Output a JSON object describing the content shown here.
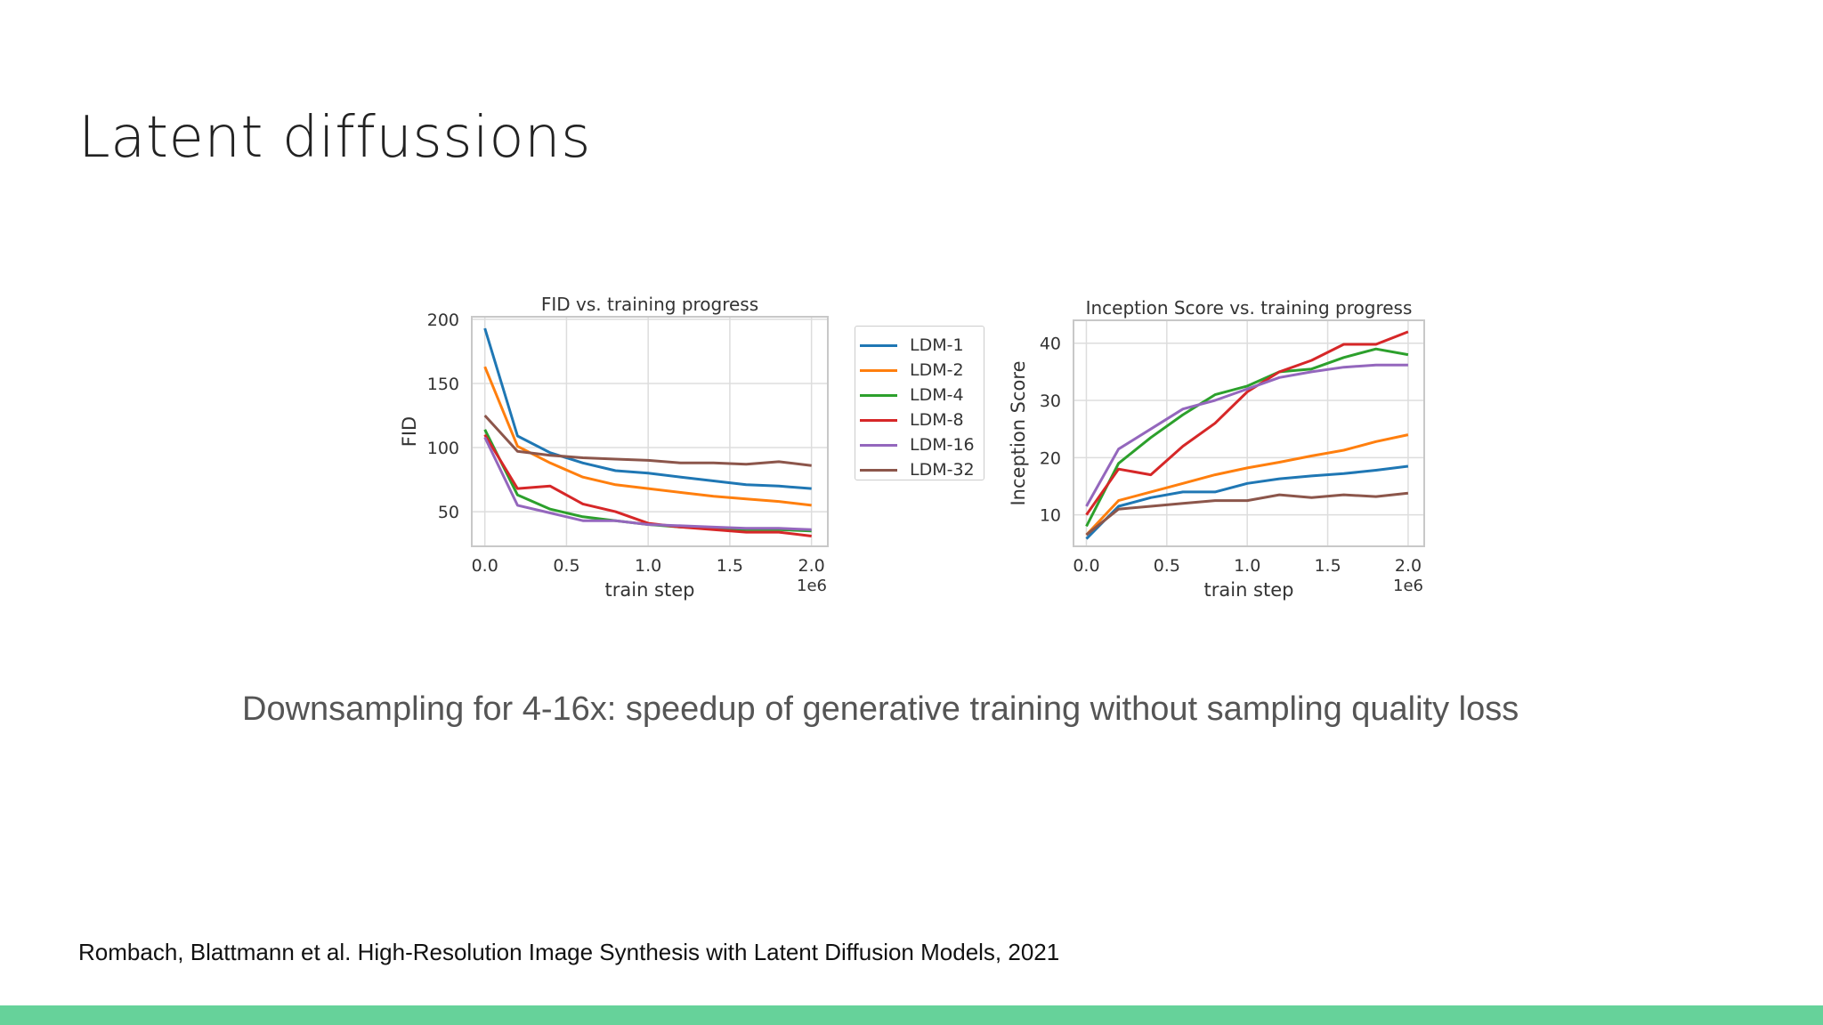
{
  "slide": {
    "title": "Latent diffussions",
    "caption": "Downsampling for 4-16x: speedup of generative training without sampling quality loss",
    "citation": "Rombach, Blattmann et al. High-Resolution Image Synthesis with Latent Diffusion Models, 2021",
    "accent_color": "#66d29a"
  },
  "legend": [
    {
      "name": "LDM-1",
      "color": "#1f77b4"
    },
    {
      "name": "LDM-2",
      "color": "#ff7f0e"
    },
    {
      "name": "LDM-4",
      "color": "#2ca02c"
    },
    {
      "name": "LDM-8",
      "color": "#d62728"
    },
    {
      "name": "LDM-16",
      "color": "#9467bd"
    },
    {
      "name": "LDM-32",
      "color": "#8c564b"
    }
  ],
  "chart_data": [
    {
      "type": "line",
      "title": "FID vs. training progress",
      "xlabel": "train step",
      "ylabel": "FID",
      "x_scale_label": "1e6",
      "xlim": [
        -0.08,
        2.1
      ],
      "ylim": [
        23,
        202
      ],
      "xticks": [
        0.0,
        0.5,
        1.0,
        1.5,
        2.0
      ],
      "xtick_labels": [
        "0.0",
        "0.5",
        "1.0",
        "1.5",
        "2.0"
      ],
      "yticks": [
        50,
        100,
        150,
        200
      ],
      "ytick_labels": [
        "50",
        "100",
        "150",
        "200"
      ],
      "grid": true,
      "legend_position": "right, outside",
      "x": [
        0.0,
        0.2,
        0.4,
        0.6,
        0.8,
        1.0,
        1.2,
        1.4,
        1.6,
        1.8,
        2.0
      ],
      "series": [
        {
          "name": "LDM-1",
          "color": "#1f77b4",
          "values": [
            193,
            109,
            96,
            88,
            82,
            80,
            77,
            74,
            71,
            70,
            68
          ]
        },
        {
          "name": "LDM-2",
          "color": "#ff7f0e",
          "values": [
            163,
            101,
            88,
            77,
            71,
            68,
            65,
            62,
            60,
            58,
            55
          ]
        },
        {
          "name": "LDM-4",
          "color": "#2ca02c",
          "values": [
            114,
            63,
            52,
            46,
            43,
            40,
            38,
            37,
            36,
            36,
            35
          ]
        },
        {
          "name": "LDM-8",
          "color": "#d62728",
          "values": [
            110,
            68,
            70,
            56,
            50,
            41,
            38,
            36,
            34,
            34,
            31
          ]
        },
        {
          "name": "LDM-16",
          "color": "#9467bd",
          "values": [
            108,
            55,
            49,
            43,
            43,
            40,
            39,
            38,
            37,
            37,
            36
          ]
        },
        {
          "name": "LDM-32",
          "color": "#8c564b",
          "values": [
            125,
            97,
            94,
            92,
            91,
            90,
            88,
            88,
            87,
            89,
            86
          ]
        }
      ]
    },
    {
      "type": "line",
      "title": "Inception Score vs. training progress",
      "xlabel": "train step",
      "ylabel": "Inception Score",
      "x_scale_label": "1e6",
      "xlim": [
        -0.08,
        2.1
      ],
      "ylim": [
        4.5,
        44
      ],
      "xticks": [
        0.0,
        0.5,
        1.0,
        1.5,
        2.0
      ],
      "xtick_labels": [
        "0.0",
        "0.5",
        "1.0",
        "1.5",
        "2.0"
      ],
      "yticks": [
        10,
        20,
        30,
        40
      ],
      "ytick_labels": [
        "10",
        "20",
        "30",
        "40"
      ],
      "grid": true,
      "x": [
        0.0,
        0.2,
        0.4,
        0.6,
        0.8,
        1.0,
        1.2,
        1.4,
        1.6,
        1.8,
        2.0
      ],
      "series": [
        {
          "name": "LDM-1",
          "color": "#1f77b4",
          "values": [
            5.8,
            11.5,
            13,
            14,
            14,
            15.5,
            16.3,
            16.8,
            17.2,
            17.8,
            18.5
          ]
        },
        {
          "name": "LDM-2",
          "color": "#ff7f0e",
          "values": [
            6.5,
            12.5,
            14,
            15.5,
            17,
            18.2,
            19.2,
            20.3,
            21.3,
            22.8,
            24
          ]
        },
        {
          "name": "LDM-4",
          "color": "#2ca02c",
          "values": [
            8,
            19,
            23.5,
            27.5,
            31,
            32.5,
            35,
            35.5,
            37.5,
            39,
            38
          ]
        },
        {
          "name": "LDM-8",
          "color": "#d62728",
          "values": [
            10,
            18,
            17,
            22,
            26,
            31.5,
            35,
            37,
            39.8,
            39.8,
            42
          ]
        },
        {
          "name": "LDM-16",
          "color": "#9467bd",
          "values": [
            11.5,
            21.5,
            25,
            28.5,
            30,
            32,
            34,
            35,
            35.8,
            36.2,
            36.2
          ]
        },
        {
          "name": "LDM-32",
          "color": "#8c564b",
          "values": [
            6.5,
            11,
            11.5,
            12,
            12.5,
            12.5,
            13.5,
            13,
            13.5,
            13.2,
            13.8
          ]
        }
      ]
    }
  ]
}
